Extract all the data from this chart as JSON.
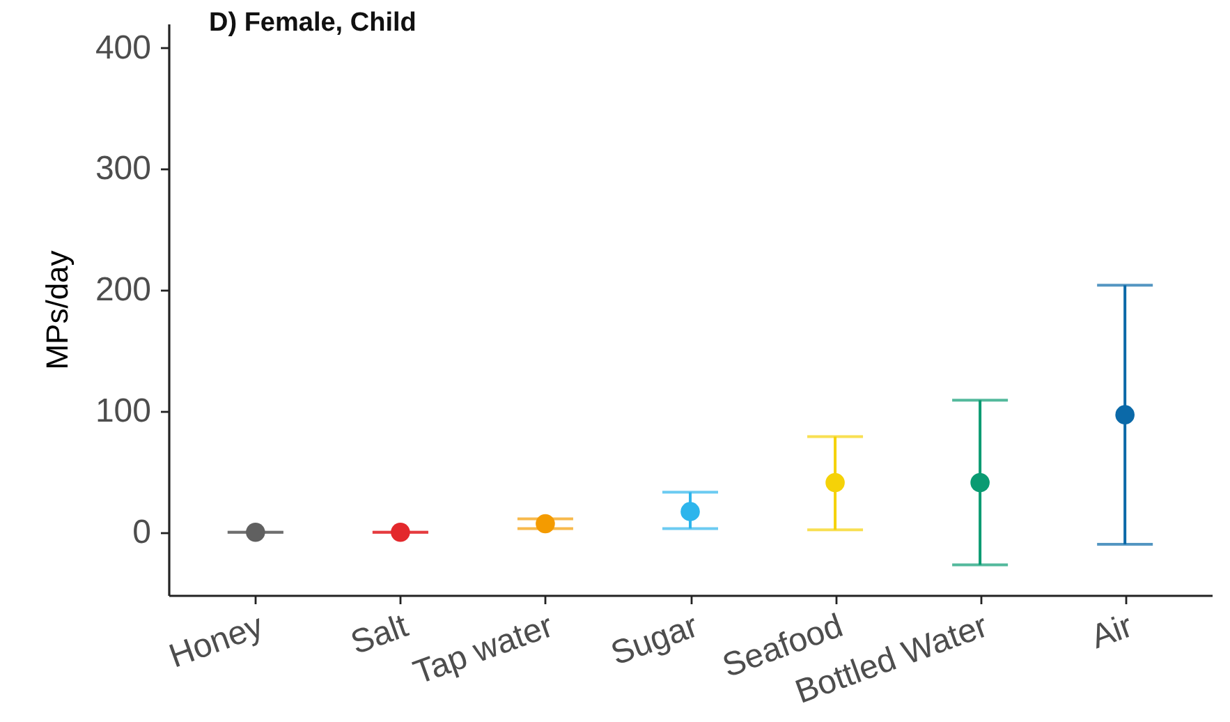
{
  "chart_data": {
    "type": "scatter",
    "title": "D) Female, Child",
    "ylabel": "MPs/day",
    "categories": [
      "Honey",
      "Salt",
      "Tap water",
      "Sugar",
      "Seafood",
      "Bottled Water",
      "Air"
    ],
    "values": [
      0,
      0,
      7,
      17,
      41,
      41,
      97
    ],
    "errors": [
      [
        0,
        0
      ],
      [
        0,
        0
      ],
      [
        3,
        11
      ],
      [
        3,
        33
      ],
      [
        2,
        79
      ],
      [
        -27,
        109
      ],
      [
        -10,
        204
      ]
    ],
    "colors": [
      "#606060",
      "#e3282c",
      "#f49b00",
      "#2db5ec",
      "#f5d208",
      "#0a9b72",
      "#0b69a8"
    ],
    "ylim": [
      -52,
      420
    ],
    "yticks": [
      0,
      100,
      200,
      300,
      400
    ],
    "marker": "circle"
  }
}
